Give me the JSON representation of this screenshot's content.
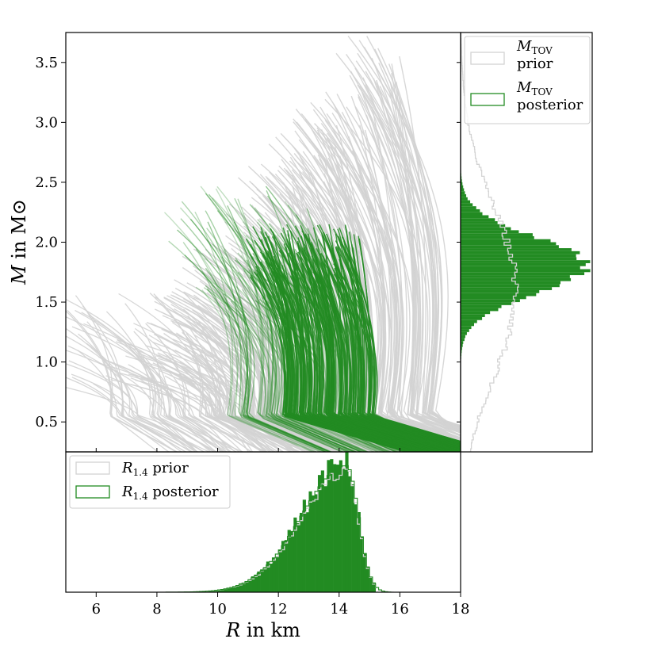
{
  "chart_data": [
    {
      "panel": "main",
      "type": "line",
      "xlabel": "R in km",
      "ylabel": "M in M⊙",
      "xlim": [
        5,
        18
      ],
      "ylim": [
        0.25,
        3.75
      ],
      "yticks": [
        "0.5",
        "1.0",
        "1.5",
        "2.0",
        "2.5",
        "3.0",
        "3.5"
      ],
      "ytick_values": [
        0.5,
        1.0,
        1.5,
        2.0,
        2.5,
        3.0,
        3.5
      ],
      "series": [
        {
          "style": "prior",
          "color": "#d3d3d3",
          "description_shown": "mass-radius curves"
        },
        {
          "style": "posterior",
          "color": "#228b22"
        }
      ]
    },
    {
      "panel": "right-histogram",
      "type": "histogram",
      "orientation": "horizontal",
      "legend": [
        {
          "label_main": "M",
          "label_sub": "TOV",
          "label_line2": "prior",
          "color": "#d3d3d3",
          "fill": false
        },
        {
          "label_main": "M",
          "label_sub": "TOV",
          "label_line2": "posterior",
          "color": "#228b22",
          "fill": false
        }
      ],
      "mass_bins": [
        0.25,
        3.75
      ],
      "posterior_peak_mass": 1.82,
      "prior_color": "#d3d3d3",
      "posterior_color": "#228b22"
    },
    {
      "panel": "bottom-histogram",
      "type": "histogram",
      "xlabel": "R in km",
      "xlim": [
        5,
        18
      ],
      "xticks": [
        "6",
        "8",
        "10",
        "12",
        "14",
        "16",
        "18"
      ],
      "xtick_values": [
        6,
        8,
        10,
        12,
        14,
        16,
        18
      ],
      "legend": [
        {
          "label_main": "R",
          "label_sub": "1.4",
          "label_suffix": "prior",
          "color": "#d3d3d3"
        },
        {
          "label_main": "R",
          "label_sub": "1.4",
          "label_suffix": "posterior",
          "color": "#228b22"
        }
      ],
      "posterior_peak_radius": 14.2,
      "posterior_range": [
        9.6,
        15.1
      ],
      "prior_range": [
        8.0,
        15.7
      ]
    }
  ]
}
